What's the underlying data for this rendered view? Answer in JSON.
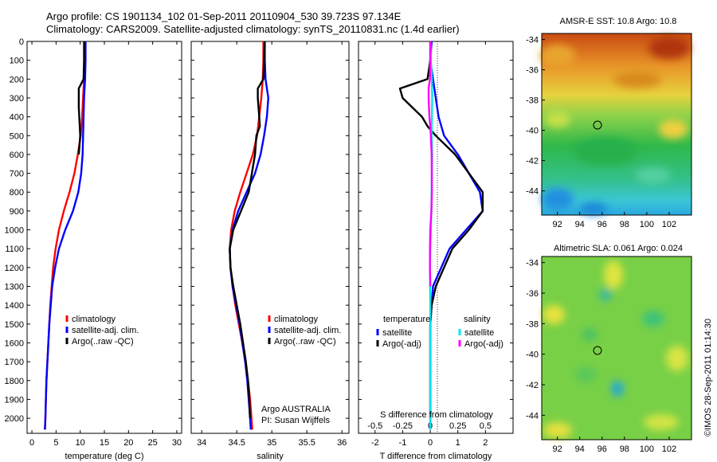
{
  "header": {
    "line1": "Argo profile: CS 1901134_102 01-Sep-2011 20110904_530 39.723S 97.134E",
    "line2": "Climatology: CARS2009. Satellite-adjusted climatology: synTS_20110831.nc (1.4d earlier)"
  },
  "side_text": "©IMOS 28-Sep-2011 01:14:30",
  "colors": {
    "climatology": "#ff0000",
    "satellite": "#0000ff",
    "argo": "#000000",
    "s_satellite": "#00e5ee",
    "s_argo": "#ff00ff"
  },
  "chart_data": [
    {
      "type": "line",
      "xlabel": "temperature (deg C)",
      "ylabel": "",
      "xlim": [
        -1,
        31
      ],
      "ylim": [
        2080,
        0
      ],
      "x_ticks": [
        0,
        5,
        10,
        15,
        20,
        25,
        30
      ],
      "y_ticks": [
        0,
        100,
        200,
        300,
        400,
        500,
        600,
        700,
        800,
        900,
        1000,
        1100,
        1200,
        1300,
        1400,
        1500,
        1600,
        1700,
        1800,
        1900,
        2000
      ],
      "legend": [
        "climatology",
        "satellite-adj. clim.",
        "Argo(..raw -QC)"
      ],
      "series": [
        {
          "name": "climatology",
          "color": "#ff0000",
          "points": [
            [
              10.9,
              0
            ],
            [
              10.9,
              100
            ],
            [
              10.8,
              200
            ],
            [
              10.6,
              300
            ],
            [
              10.4,
              400
            ],
            [
              10.1,
              500
            ],
            [
              9.5,
              600
            ],
            [
              8.8,
              700
            ],
            [
              7.8,
              800
            ],
            [
              6.6,
              900
            ],
            [
              5.6,
              1000
            ],
            [
              4.9,
              1100
            ],
            [
              4.4,
              1200
            ],
            [
              4.1,
              1300
            ],
            [
              3.8,
              1400
            ],
            [
              3.6,
              1500
            ],
            [
              3.4,
              1600
            ],
            [
              3.2,
              1700
            ],
            [
              3.0,
              1800
            ],
            [
              2.9,
              1900
            ],
            [
              2.8,
              2000
            ],
            [
              2.7,
              2060
            ]
          ]
        },
        {
          "name": "satellite-adj. clim.",
          "color": "#0000ff",
          "points": [
            [
              11.1,
              0
            ],
            [
              11.1,
              100
            ],
            [
              11.0,
              200
            ],
            [
              10.8,
              300
            ],
            [
              10.7,
              400
            ],
            [
              10.6,
              500
            ],
            [
              10.5,
              600
            ],
            [
              10.2,
              700
            ],
            [
              9.6,
              800
            ],
            [
              8.5,
              900
            ],
            [
              6.9,
              1000
            ],
            [
              5.6,
              1100
            ],
            [
              4.8,
              1200
            ],
            [
              4.2,
              1300
            ],
            [
              3.9,
              1400
            ],
            [
              3.6,
              1500
            ],
            [
              3.4,
              1600
            ],
            [
              3.2,
              1700
            ],
            [
              3.0,
              1800
            ],
            [
              2.9,
              1900
            ],
            [
              2.8,
              2000
            ],
            [
              2.7,
              2060
            ]
          ]
        },
        {
          "name": "Argo(..raw -QC)",
          "color": "#000000",
          "points": [
            [
              10.8,
              0
            ],
            [
              10.8,
              100
            ],
            [
              10.7,
              200
            ],
            [
              9.7,
              250
            ],
            [
              9.7,
              350
            ],
            [
              9.9,
              450
            ],
            [
              10.0,
              500
            ],
            [
              9.7,
              600
            ]
          ]
        }
      ]
    },
    {
      "type": "line",
      "xlabel": "salinity",
      "ylabel": "",
      "xlim": [
        33.85,
        36.1
      ],
      "ylim": [
        2080,
        0
      ],
      "x_ticks": [
        34,
        34.5,
        35,
        35.5,
        36
      ],
      "legend": [
        "climatology",
        "satellite-adj. clim.",
        "Argo(..raw -QC)"
      ],
      "annotations": [
        "Argo AUSTRALIA",
        "PI: Susan Wijffels"
      ],
      "series": [
        {
          "name": "climatology",
          "color": "#ff0000",
          "points": [
            [
              34.88,
              0
            ],
            [
              34.88,
              100
            ],
            [
              34.87,
              200
            ],
            [
              34.85,
              300
            ],
            [
              34.82,
              400
            ],
            [
              34.79,
              500
            ],
            [
              34.73,
              600
            ],
            [
              34.64,
              700
            ],
            [
              34.55,
              800
            ],
            [
              34.47,
              900
            ],
            [
              34.42,
              1000
            ],
            [
              34.4,
              1100
            ],
            [
              34.41,
              1200
            ],
            [
              34.44,
              1300
            ],
            [
              34.48,
              1400
            ],
            [
              34.53,
              1500
            ],
            [
              34.58,
              1600
            ],
            [
              34.62,
              1700
            ],
            [
              34.66,
              1800
            ],
            [
              34.69,
              1900
            ],
            [
              34.71,
              2000
            ],
            [
              34.72,
              2060
            ]
          ]
        },
        {
          "name": "satellite-adj. clim.",
          "color": "#0000ff",
          "points": [
            [
              34.9,
              0
            ],
            [
              34.9,
              100
            ],
            [
              34.91,
              200
            ],
            [
              34.95,
              300
            ],
            [
              34.93,
              400
            ],
            [
              34.89,
              500
            ],
            [
              34.84,
              600
            ],
            [
              34.76,
              700
            ],
            [
              34.64,
              800
            ],
            [
              34.52,
              900
            ],
            [
              34.44,
              1000
            ],
            [
              34.4,
              1100
            ],
            [
              34.41,
              1200
            ],
            [
              34.44,
              1300
            ],
            [
              34.49,
              1400
            ],
            [
              34.54,
              1500
            ],
            [
              34.58,
              1600
            ],
            [
              34.62,
              1700
            ],
            [
              34.65,
              1800
            ],
            [
              34.67,
              1900
            ],
            [
              34.69,
              2000
            ],
            [
              34.7,
              2060
            ]
          ]
        },
        {
          "name": "Argo(..raw -QC)",
          "color": "#000000",
          "points": [
            [
              34.9,
              0
            ],
            [
              34.89,
              100
            ],
            [
              34.88,
              200
            ],
            [
              34.8,
              250
            ],
            [
              34.8,
              300
            ],
            [
              34.82,
              400
            ],
            [
              34.83,
              450
            ],
            [
              34.78,
              500
            ],
            [
              34.76,
              600
            ],
            [
              34.67,
              800
            ],
            [
              34.56,
              900
            ],
            [
              34.45,
              1000
            ],
            [
              34.4,
              1100
            ],
            [
              34.41,
              1200
            ],
            [
              34.45,
              1300
            ],
            [
              34.5,
              1400
            ],
            [
              34.55,
              1500
            ],
            [
              34.59,
              1600
            ],
            [
              34.63,
              1700
            ],
            [
              34.66,
              1800
            ],
            [
              34.68,
              1900
            ],
            [
              34.69,
              2000
            ]
          ]
        }
      ]
    },
    {
      "type": "line",
      "xlabel": "T difference from climatology",
      "ylabel": "",
      "xlim": [
        -2.6,
        3.0
      ],
      "ylim": [
        2080,
        0
      ],
      "x_ticks": [
        -2,
        -1,
        0,
        1,
        2
      ],
      "top_scale_label": "S difference from climatology",
      "top_scale_ticks": [
        "-0.5",
        "-0.25",
        "0",
        "0.25",
        "0.5"
      ],
      "legend_titles": [
        "temperature",
        "salinity"
      ],
      "legend": [
        "satellite",
        "Argo(-adj)",
        "satellite",
        "Argo(-adj)"
      ],
      "series": [
        {
          "name": "temperature satellite",
          "color": "#0000ff",
          "points": [
            [
              0.05,
              0
            ],
            [
              0.0,
              100
            ],
            [
              0.1,
              200
            ],
            [
              0.2,
              300
            ],
            [
              0.3,
              400
            ],
            [
              0.5,
              500
            ],
            [
              1.0,
              600
            ],
            [
              1.4,
              700
            ],
            [
              1.8,
              800
            ],
            [
              1.9,
              900
            ],
            [
              1.3,
              1000
            ],
            [
              0.7,
              1100
            ],
            [
              0.4,
              1200
            ],
            [
              0.1,
              1300
            ],
            [
              0.05,
              1400
            ],
            [
              0.0,
              1500
            ],
            [
              0.0,
              2000
            ],
            [
              0.0,
              2060
            ]
          ]
        },
        {
          "name": "temperature Argo(-adj)",
          "color": "#000000",
          "points": [
            [
              0.0,
              0
            ],
            [
              0.0,
              100
            ],
            [
              -0.1,
              200
            ],
            [
              -1.1,
              250
            ],
            [
              -1.0,
              300
            ],
            [
              -0.3,
              400
            ],
            [
              -0.1,
              450
            ],
            [
              0.2,
              500
            ],
            [
              0.9,
              600
            ],
            [
              1.4,
              700
            ],
            [
              1.9,
              800
            ],
            [
              1.9,
              900
            ],
            [
              1.4,
              1000
            ],
            [
              0.8,
              1100
            ],
            [
              0.5,
              1200
            ],
            [
              0.2,
              1300
            ],
            [
              0.05,
              1400
            ],
            [
              0.0,
              1500
            ],
            [
              0.0,
              2000
            ]
          ]
        },
        {
          "name": "salinity satellite",
          "color": "#00e5ee",
          "points": [
            [
              0.01,
              0
            ],
            [
              0.02,
              100
            ],
            [
              0.06,
              200
            ],
            [
              0.07,
              300
            ],
            [
              0.06,
              400
            ],
            [
              0.05,
              500
            ],
            [
              0.07,
              600
            ],
            [
              0.05,
              800
            ],
            [
              0.04,
              900
            ],
            [
              0.02,
              1000
            ],
            [
              0.0,
              1100
            ],
            [
              -0.01,
              1200
            ],
            [
              0.0,
              1400
            ],
            [
              0.0,
              1500
            ],
            [
              0.0,
              2060
            ]
          ]
        },
        {
          "name": "salinity Argo(-adj)",
          "color": "#ff00ff",
          "points": [
            [
              0.0,
              0
            ],
            [
              0.0,
              100
            ],
            [
              -0.01,
              200
            ],
            [
              -0.06,
              250
            ],
            [
              -0.06,
              300
            ],
            [
              -0.03,
              400
            ],
            [
              0.0,
              450
            ],
            [
              0.02,
              500
            ],
            [
              0.05,
              600
            ],
            [
              0.06,
              800
            ],
            [
              0.04,
              900
            ],
            [
              0.0,
              1000
            ],
            [
              -0.01,
              1100
            ],
            [
              -0.01,
              1200
            ],
            [
              0.0,
              1300
            ]
          ]
        }
      ]
    },
    {
      "type": "heatmap",
      "title": "AMSR-E SST: 10.8  Argo: 10.8",
      "xlim": [
        90.6,
        104.0
      ],
      "ylim": [
        -45.6,
        -33.6
      ],
      "x_ticks": [
        92,
        94,
        96,
        98,
        100,
        102
      ],
      "y_ticks": [
        -34,
        -36,
        -38,
        -40,
        -42,
        -44
      ],
      "marker": [
        97.134,
        -39.723
      ]
    },
    {
      "type": "heatmap",
      "title": "Altimetric SLA: 0.061  Argo: 0.024",
      "xlim": [
        90.6,
        104.0
      ],
      "ylim": [
        -45.6,
        -33.6
      ],
      "x_ticks": [
        92,
        94,
        96,
        98,
        100,
        102
      ],
      "y_ticks": [
        -34,
        -36,
        -38,
        -40,
        -42,
        -44
      ],
      "marker": [
        97.134,
        -39.723
      ]
    }
  ]
}
